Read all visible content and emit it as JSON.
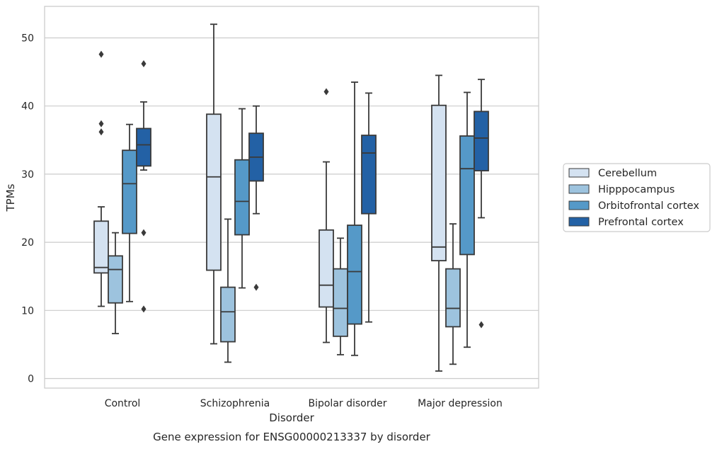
{
  "chart_data": {
    "type": "box",
    "title": "Gene expression for ENSG00000213337 by disorder",
    "xlabel": "Disorder",
    "ylabel": "TPMs",
    "ylim": [
      -1.3,
      54.5
    ],
    "yticks": [
      0,
      10,
      20,
      30,
      40,
      50
    ],
    "grid": "horizontal",
    "legend_position": "right",
    "categories": [
      "Control",
      "Schizophrenia",
      "Bipolar disorder",
      "Major depression"
    ],
    "series": [
      {
        "name": "Cerebellum",
        "color": "#d4e2f1",
        "boxes": [
          {
            "whisker_low": 10.6,
            "q1": 15.5,
            "median": 16.3,
            "q3": 23.1,
            "whisker_high": 25.2,
            "outliers": [
              36.2,
              37.4,
              47.6
            ]
          },
          {
            "whisker_low": 5.1,
            "q1": 15.9,
            "median": 29.6,
            "q3": 38.8,
            "whisker_high": 52.0,
            "outliers": []
          },
          {
            "whisker_low": 5.3,
            "q1": 10.5,
            "median": 13.7,
            "q3": 21.8,
            "whisker_high": 31.8,
            "outliers": [
              42.1
            ]
          },
          {
            "whisker_low": 1.1,
            "q1": 17.3,
            "median": 19.3,
            "q3": 40.1,
            "whisker_high": 44.5,
            "outliers": []
          }
        ]
      },
      {
        "name": "Hipppocampus",
        "color": "#9dc3de",
        "boxes": [
          {
            "whisker_low": 6.6,
            "q1": 11.1,
            "median": 16.0,
            "q3": 18.0,
            "whisker_high": 21.4,
            "outliers": []
          },
          {
            "whisker_low": 2.4,
            "q1": 5.4,
            "median": 9.8,
            "q3": 13.4,
            "whisker_high": 23.4,
            "outliers": []
          },
          {
            "whisker_low": 3.5,
            "q1": 6.2,
            "median": 10.3,
            "q3": 16.1,
            "whisker_high": 20.6,
            "outliers": []
          },
          {
            "whisker_low": 2.1,
            "q1": 7.6,
            "median": 10.3,
            "q3": 16.1,
            "whisker_high": 22.7,
            "outliers": []
          }
        ]
      },
      {
        "name": "Orbitofrontal cortex",
        "color": "#5599c8",
        "boxes": [
          {
            "whisker_low": 11.3,
            "q1": 21.3,
            "median": 28.6,
            "q3": 33.5,
            "whisker_high": 37.3,
            "outliers": []
          },
          {
            "whisker_low": 13.3,
            "q1": 21.1,
            "median": 26.0,
            "q3": 32.1,
            "whisker_high": 39.6,
            "outliers": []
          },
          {
            "whisker_low": 3.4,
            "q1": 8.0,
            "median": 15.7,
            "q3": 22.5,
            "whisker_high": 43.5,
            "outliers": []
          },
          {
            "whisker_low": 4.6,
            "q1": 18.2,
            "median": 30.8,
            "q3": 35.6,
            "whisker_high": 42.0,
            "outliers": []
          }
        ]
      },
      {
        "name": "Prefrontal cortex",
        "color": "#2361a5",
        "boxes": [
          {
            "whisker_low": 30.6,
            "q1": 31.2,
            "median": 34.3,
            "q3": 36.7,
            "whisker_high": 40.6,
            "outliers": [
              10.2,
              21.4,
              46.2
            ]
          },
          {
            "whisker_low": 24.2,
            "q1": 29.0,
            "median": 32.5,
            "q3": 36.0,
            "whisker_high": 40.0,
            "outliers": [
              13.4
            ]
          },
          {
            "whisker_low": 8.3,
            "q1": 24.2,
            "median": 33.1,
            "q3": 35.7,
            "whisker_high": 41.9,
            "outliers": []
          },
          {
            "whisker_low": 23.6,
            "q1": 30.5,
            "median": 35.3,
            "q3": 39.2,
            "whisker_high": 43.9,
            "outliers": [
              7.9
            ]
          }
        ]
      }
    ]
  }
}
